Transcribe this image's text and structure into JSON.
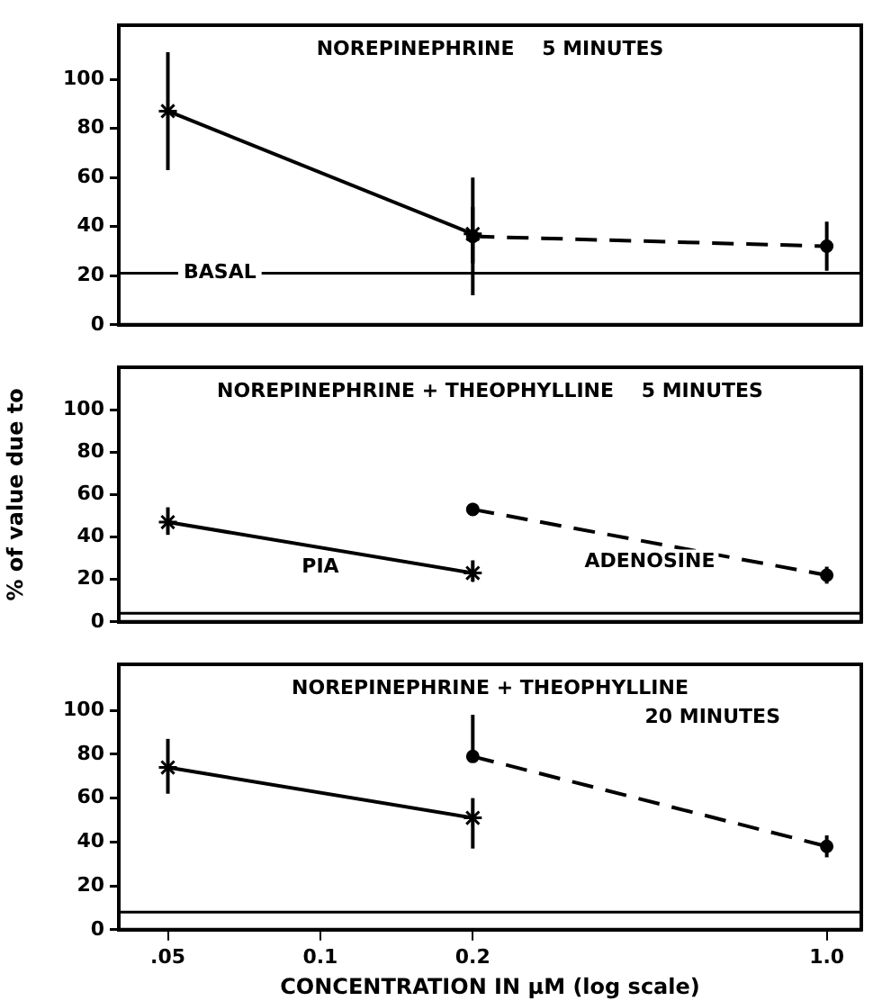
{
  "chart_data": [
    {
      "type": "line",
      "title": "NOREPINEPHRINE    5 MINUTES",
      "xlim": [
        0.04,
        1.17
      ],
      "ylim": [
        0,
        122
      ],
      "yticks": [
        0,
        20,
        40,
        60,
        80,
        100
      ],
      "log": "x",
      "grid": false,
      "legend": false,
      "tick_labels": "y",
      "series": [
        {
          "x": [
            0.05,
            0.2
          ],
          "values": [
            87,
            37
          ],
          "errors": [
            [
              63,
              111
            ],
            [
              25,
              48
            ]
          ],
          "color": "#000000",
          "marker": "cross",
          "line_style": "solid"
        },
        {
          "x": [
            0.2,
            1
          ],
          "values": [
            36,
            32
          ],
          "errors": [
            [
              12,
              60
            ],
            [
              22,
              42
            ]
          ],
          "color": "#000000",
          "marker": "circle",
          "line_style": "dashed"
        }
      ],
      "ref_lines": [
        {
          "axis": "y",
          "value": 21,
          "label": "BASAL",
          "color": "#000000"
        }
      ]
    },
    {
      "type": "line",
      "title": "NOREPINEPHRINE + THEOPHYLLINE    5 MINUTES",
      "ylabel": "% of value due to",
      "xlim": [
        0.04,
        1.17
      ],
      "ylim": [
        0,
        120
      ],
      "yticks": [
        0,
        20,
        40,
        60,
        80,
        100
      ],
      "log": "x",
      "grid": false,
      "legend": false,
      "tick_labels": "y",
      "series": [
        {
          "name": "PIA",
          "x": [
            0.05,
            0.2
          ],
          "values": [
            47,
            23
          ],
          "errors": [
            [
              41,
              54
            ],
            [
              19,
              29
            ]
          ],
          "color": "#000000",
          "marker": "cross",
          "line_style": "solid"
        },
        {
          "name": "ADENOSINE",
          "x": [
            0.2,
            1
          ],
          "values": [
            53,
            22
          ],
          "errors": [
            [
              50,
              56
            ],
            [
              18,
              26
            ]
          ],
          "color": "#000000",
          "marker": "circle",
          "line_style": "dashed"
        }
      ],
      "ref_lines": [
        {
          "axis": "y",
          "value": 4,
          "color": "#000000"
        }
      ]
    },
    {
      "type": "line",
      "title": "NOREPINEPHRINE + THEOPHYLLINE",
      "subtitle": "20 MINUTES",
      "xlabel": "CONCENTRATION IN μM (log scale)",
      "xlim": [
        0.04,
        1.17
      ],
      "xticks": [
        {
          "value": 0.05,
          "label": ".05"
        },
        0.1,
        0.2,
        {
          "value": 1,
          "label": "1.0"
        }
      ],
      "ylim": [
        0,
        121
      ],
      "yticks": [
        0,
        20,
        40,
        60,
        80,
        100
      ],
      "log": "x",
      "grid": false,
      "legend": false,
      "series": [
        {
          "x": [
            0.05,
            0.2
          ],
          "values": [
            74,
            51
          ],
          "errors": [
            [
              62,
              87
            ],
            [
              37,
              60
            ]
          ],
          "color": "#000000",
          "marker": "cross",
          "line_style": "solid"
        },
        {
          "x": [
            0.2,
            1
          ],
          "values": [
            79,
            38
          ],
          "errors": [
            [
              79,
              98
            ],
            [
              33,
              43
            ]
          ],
          "color": "#000000",
          "marker": "circle",
          "line_style": "dashed"
        }
      ],
      "ref_lines": [
        {
          "axis": "y",
          "value": 8,
          "color": "#000000"
        }
      ]
    }
  ]
}
